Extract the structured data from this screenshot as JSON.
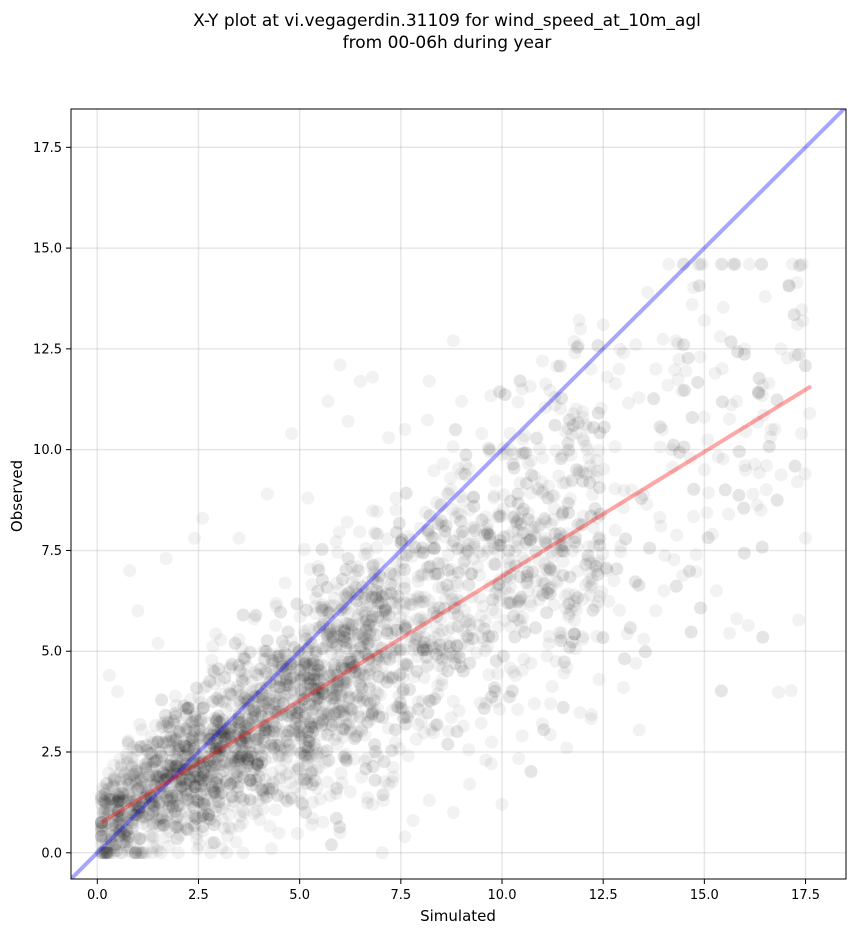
{
  "chart_data": {
    "type": "scatter",
    "title_lines": [
      "X-Y plot at vi.vegagerdin.31109 for wind_speed_at_10m_agl",
      "from 00-06h during year"
    ],
    "xlabel": "Simulated",
    "ylabel": "Observed",
    "xlim": [
      -0.65,
      18.5
    ],
    "ylim": [
      -0.65,
      18.45
    ],
    "x_ticks": [
      0.0,
      2.5,
      5.0,
      7.5,
      10.0,
      12.5,
      15.0,
      17.5
    ],
    "y_ticks": [
      0.0,
      2.5,
      5.0,
      7.5,
      10.0,
      12.5,
      15.0,
      17.5
    ],
    "x_tick_labels": [
      "0.0",
      "2.5",
      "5.0",
      "7.5",
      "10.0",
      "12.5",
      "15.0",
      "17.5"
    ],
    "y_tick_labels": [
      "0.0",
      "2.5",
      "5.0",
      "7.5",
      "10.0",
      "12.5",
      "15.0",
      "17.5"
    ],
    "grid": true,
    "scatter_color": "#000000",
    "scatter_alpha": 0.05,
    "identity_line": {
      "x": [
        -0.65,
        18.5
      ],
      "y": [
        -0.65,
        18.5
      ],
      "color": "#0000ff",
      "alpha": 0.35
    },
    "fit_line": {
      "x": [
        0.15,
        17.6
      ],
      "y": [
        0.78,
        11.55
      ],
      "color": "#ff0000",
      "alpha": 0.35
    },
    "points": [
      [
        0.8,
        7.0
      ],
      [
        1.0,
        6.0
      ],
      [
        1.7,
        7.3
      ],
      [
        2.4,
        7.8
      ],
      [
        2.6,
        8.3
      ],
      [
        1.5,
        5.2
      ],
      [
        0.3,
        4.4
      ],
      [
        0.5,
        4.0
      ],
      [
        3.5,
        7.8
      ],
      [
        4.2,
        8.9
      ],
      [
        4.8,
        10.4
      ],
      [
        5.2,
        8.8
      ],
      [
        5.7,
        11.2
      ],
      [
        6.0,
        12.1
      ],
      [
        6.2,
        10.7
      ],
      [
        6.5,
        11.7
      ],
      [
        6.8,
        11.8
      ],
      [
        7.2,
        10.3
      ],
      [
        7.6,
        10.5
      ],
      [
        8.2,
        11.7
      ],
      [
        8.8,
        12.7
      ],
      [
        9.0,
        11.2
      ],
      [
        9.5,
        10.4
      ],
      [
        10.2,
        10.4
      ],
      [
        10.5,
        11.5
      ],
      [
        11.0,
        12.2
      ],
      [
        11.3,
        11.3
      ],
      [
        11.8,
        12.4
      ],
      [
        12.0,
        10.8
      ],
      [
        12.2,
        12.0
      ],
      [
        12.5,
        13.1
      ],
      [
        12.6,
        11.8
      ],
      [
        13.0,
        12.4
      ],
      [
        13.3,
        12.6
      ],
      [
        13.6,
        13.9
      ],
      [
        13.8,
        12.0
      ],
      [
        14.1,
        11.6
      ],
      [
        14.3,
        12.7
      ],
      [
        14.5,
        14.6
      ],
      [
        14.7,
        13.6
      ],
      [
        14.9,
        12.3
      ],
      [
        15.0,
        13.2
      ],
      [
        15.4,
        12.8
      ],
      [
        15.8,
        11.2
      ],
      [
        16.0,
        12.5
      ],
      [
        16.5,
        13.8
      ],
      [
        16.9,
        12.5
      ],
      [
        17.6,
        10.9
      ],
      [
        17.4,
        10.4
      ],
      [
        17.3,
        9.2
      ],
      [
        17.5,
        7.8
      ],
      [
        16.4,
        8.5
      ],
      [
        16.0,
        9.6
      ],
      [
        15.6,
        8.4
      ],
      [
        15.2,
        7.9
      ],
      [
        14.8,
        7.4
      ],
      [
        14.0,
        6.5
      ],
      [
        13.8,
        6.0
      ],
      [
        13.5,
        5.3
      ],
      [
        13.3,
        4.7
      ],
      [
        13.0,
        4.1
      ],
      [
        12.4,
        4.3
      ],
      [
        12.0,
        5.3
      ],
      [
        11.6,
        4.6
      ],
      [
        11.2,
        3.7
      ],
      [
        11.0,
        3.2
      ],
      [
        10.8,
        3.7
      ],
      [
        10.5,
        2.9
      ],
      [
        10.0,
        1.2
      ],
      [
        9.6,
        2.3
      ],
      [
        9.2,
        1.7
      ],
      [
        8.8,
        1.0
      ],
      [
        8.2,
        1.3
      ],
      [
        7.8,
        0.8
      ],
      [
        7.6,
        0.4
      ],
      [
        7.2,
        1.7
      ],
      [
        6.8,
        1.2
      ],
      [
        6.0,
        0.5
      ],
      [
        5.3,
        0.7
      ],
      [
        4.3,
        0.1
      ],
      [
        3.6,
        0.0
      ],
      [
        2.8,
        0.0
      ],
      [
        2.0,
        0.0
      ],
      [
        1.2,
        0.0
      ],
      [
        0.4,
        0.0
      ],
      [
        11.6,
        2.6
      ],
      [
        15.3,
        6.5
      ],
      [
        15.8,
        5.8
      ],
      [
        16.2,
        8.9
      ],
      [
        15.0,
        9.5
      ],
      [
        14.2,
        10.0
      ],
      [
        13.2,
        9.0
      ],
      [
        12.8,
        8.0
      ],
      [
        12.6,
        7.0
      ],
      [
        11.5,
        8.4
      ],
      [
        11.0,
        9.8
      ],
      [
        10.4,
        8.0
      ],
      [
        9.8,
        8.8
      ],
      [
        9.4,
        7.1
      ],
      [
        9.0,
        9.4
      ],
      [
        8.6,
        6.3
      ],
      [
        8.2,
        7.9
      ],
      [
        7.9,
        5.8
      ],
      [
        7.4,
        7.2
      ]
    ]
  }
}
